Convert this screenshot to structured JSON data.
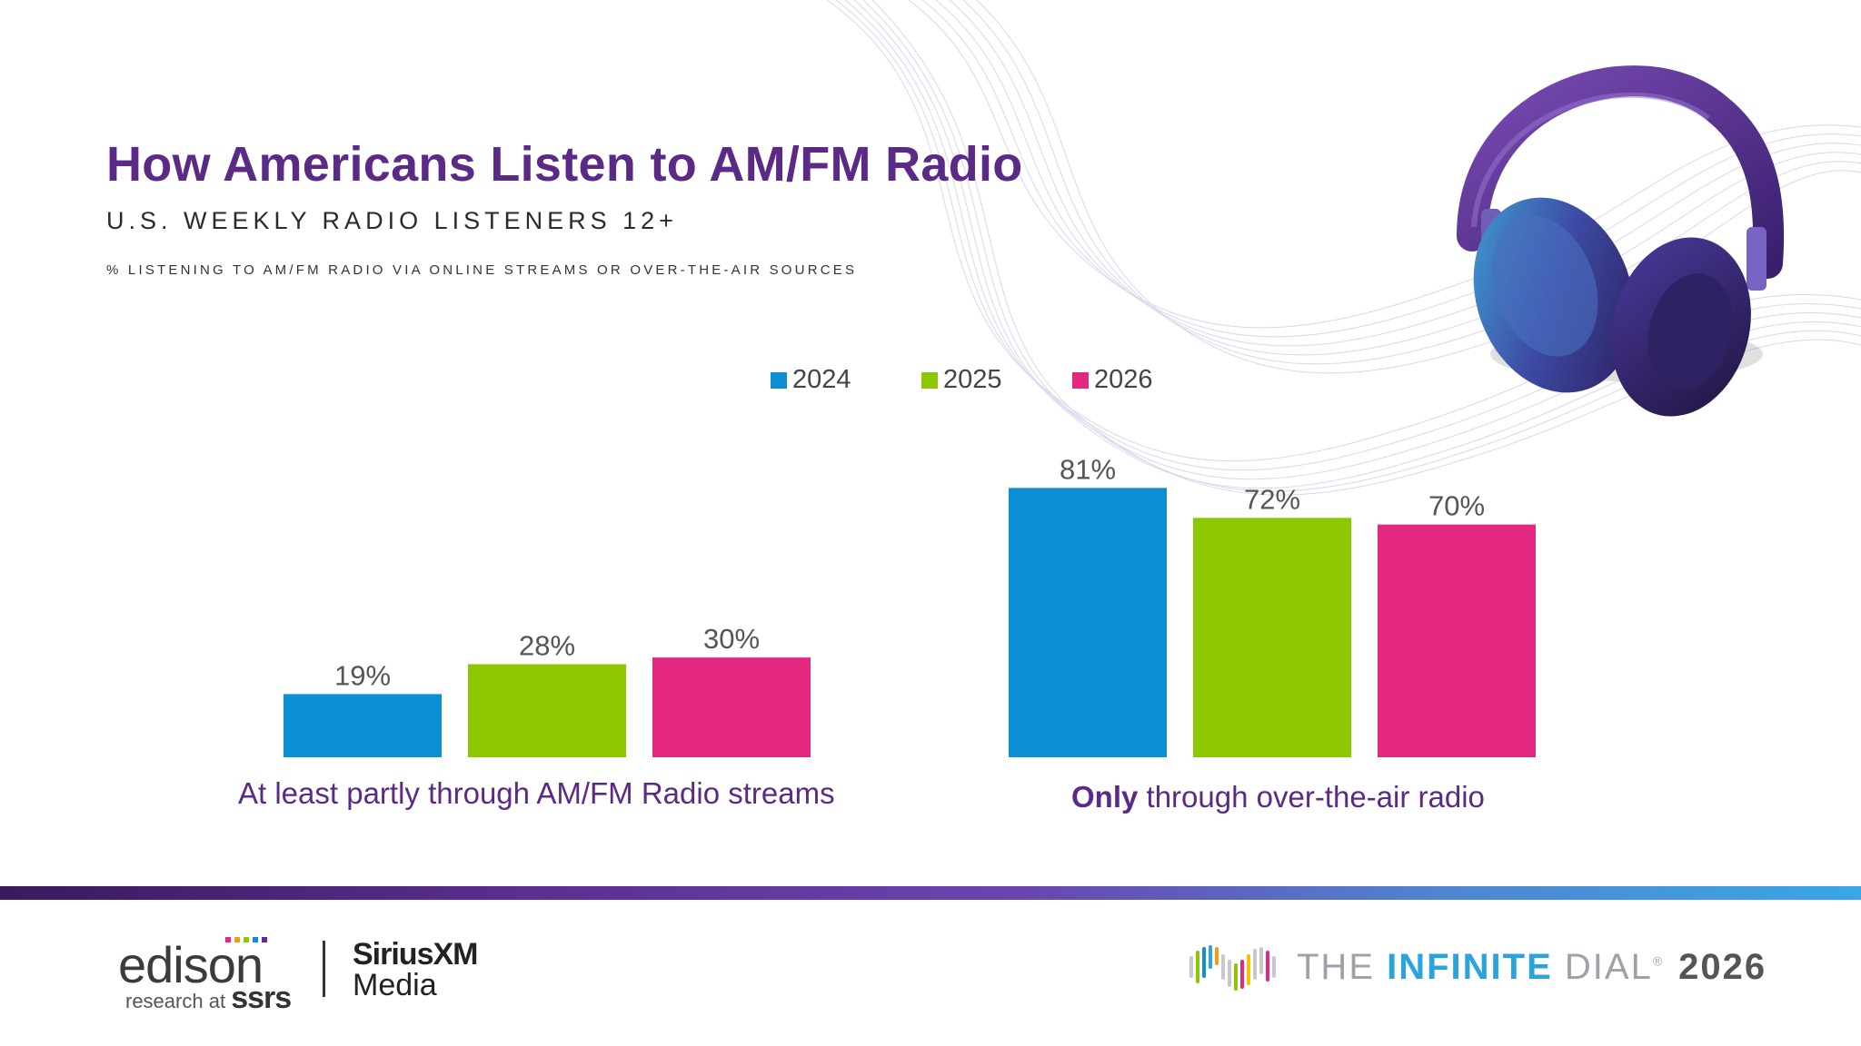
{
  "header": {
    "title": "How Americans Listen to AM/FM Radio",
    "subtitle": "U.S. WEEKLY RADIO LISTENERS 12+",
    "note": "% LISTENING TO AM/FM RADIO VIA ONLINE STREAMS OR OVER-THE-AIR SOURCES"
  },
  "chart_data": {
    "type": "bar",
    "categories": [
      "At least partly through AM/FM Radio streams",
      "Only through over-the-air radio"
    ],
    "category_labels": [
      {
        "bold": "",
        "text": "At least partly through AM/FM Radio streams"
      },
      {
        "bold": "Only",
        "text": " through over-the-air radio"
      }
    ],
    "series": [
      {
        "name": "2024",
        "values": [
          19,
          81
        ],
        "labels": [
          "19%",
          "81%"
        ],
        "color": "#0d8fd4"
      },
      {
        "name": "2025",
        "values": [
          28,
          72
        ],
        "labels": [
          "28%",
          "72%"
        ],
        "color": "#8cc700"
      },
      {
        "name": "2026",
        "values": [
          30,
          70
        ],
        "labels": [
          "30%",
          "70%"
        ],
        "color": "#e5287f"
      }
    ],
    "ylim": [
      0,
      100
    ],
    "grid": false,
    "legend": "top"
  },
  "footer": {
    "edison": "edison",
    "edison_sub": "research at",
    "edison_sub_bold": "ssrs",
    "sirius_top": "SiriusXM",
    "sirius_bottom": "Media",
    "dial_the": "THE ",
    "dial_infinite": "INFINITE",
    "dial_dial": " DIAL",
    "dial_reg": "®",
    "dial_year": "2026"
  },
  "colors": {
    "title": "#5b2a86",
    "accent_purple": "#5e2f93",
    "accent_blue": "#3aa6e6"
  }
}
